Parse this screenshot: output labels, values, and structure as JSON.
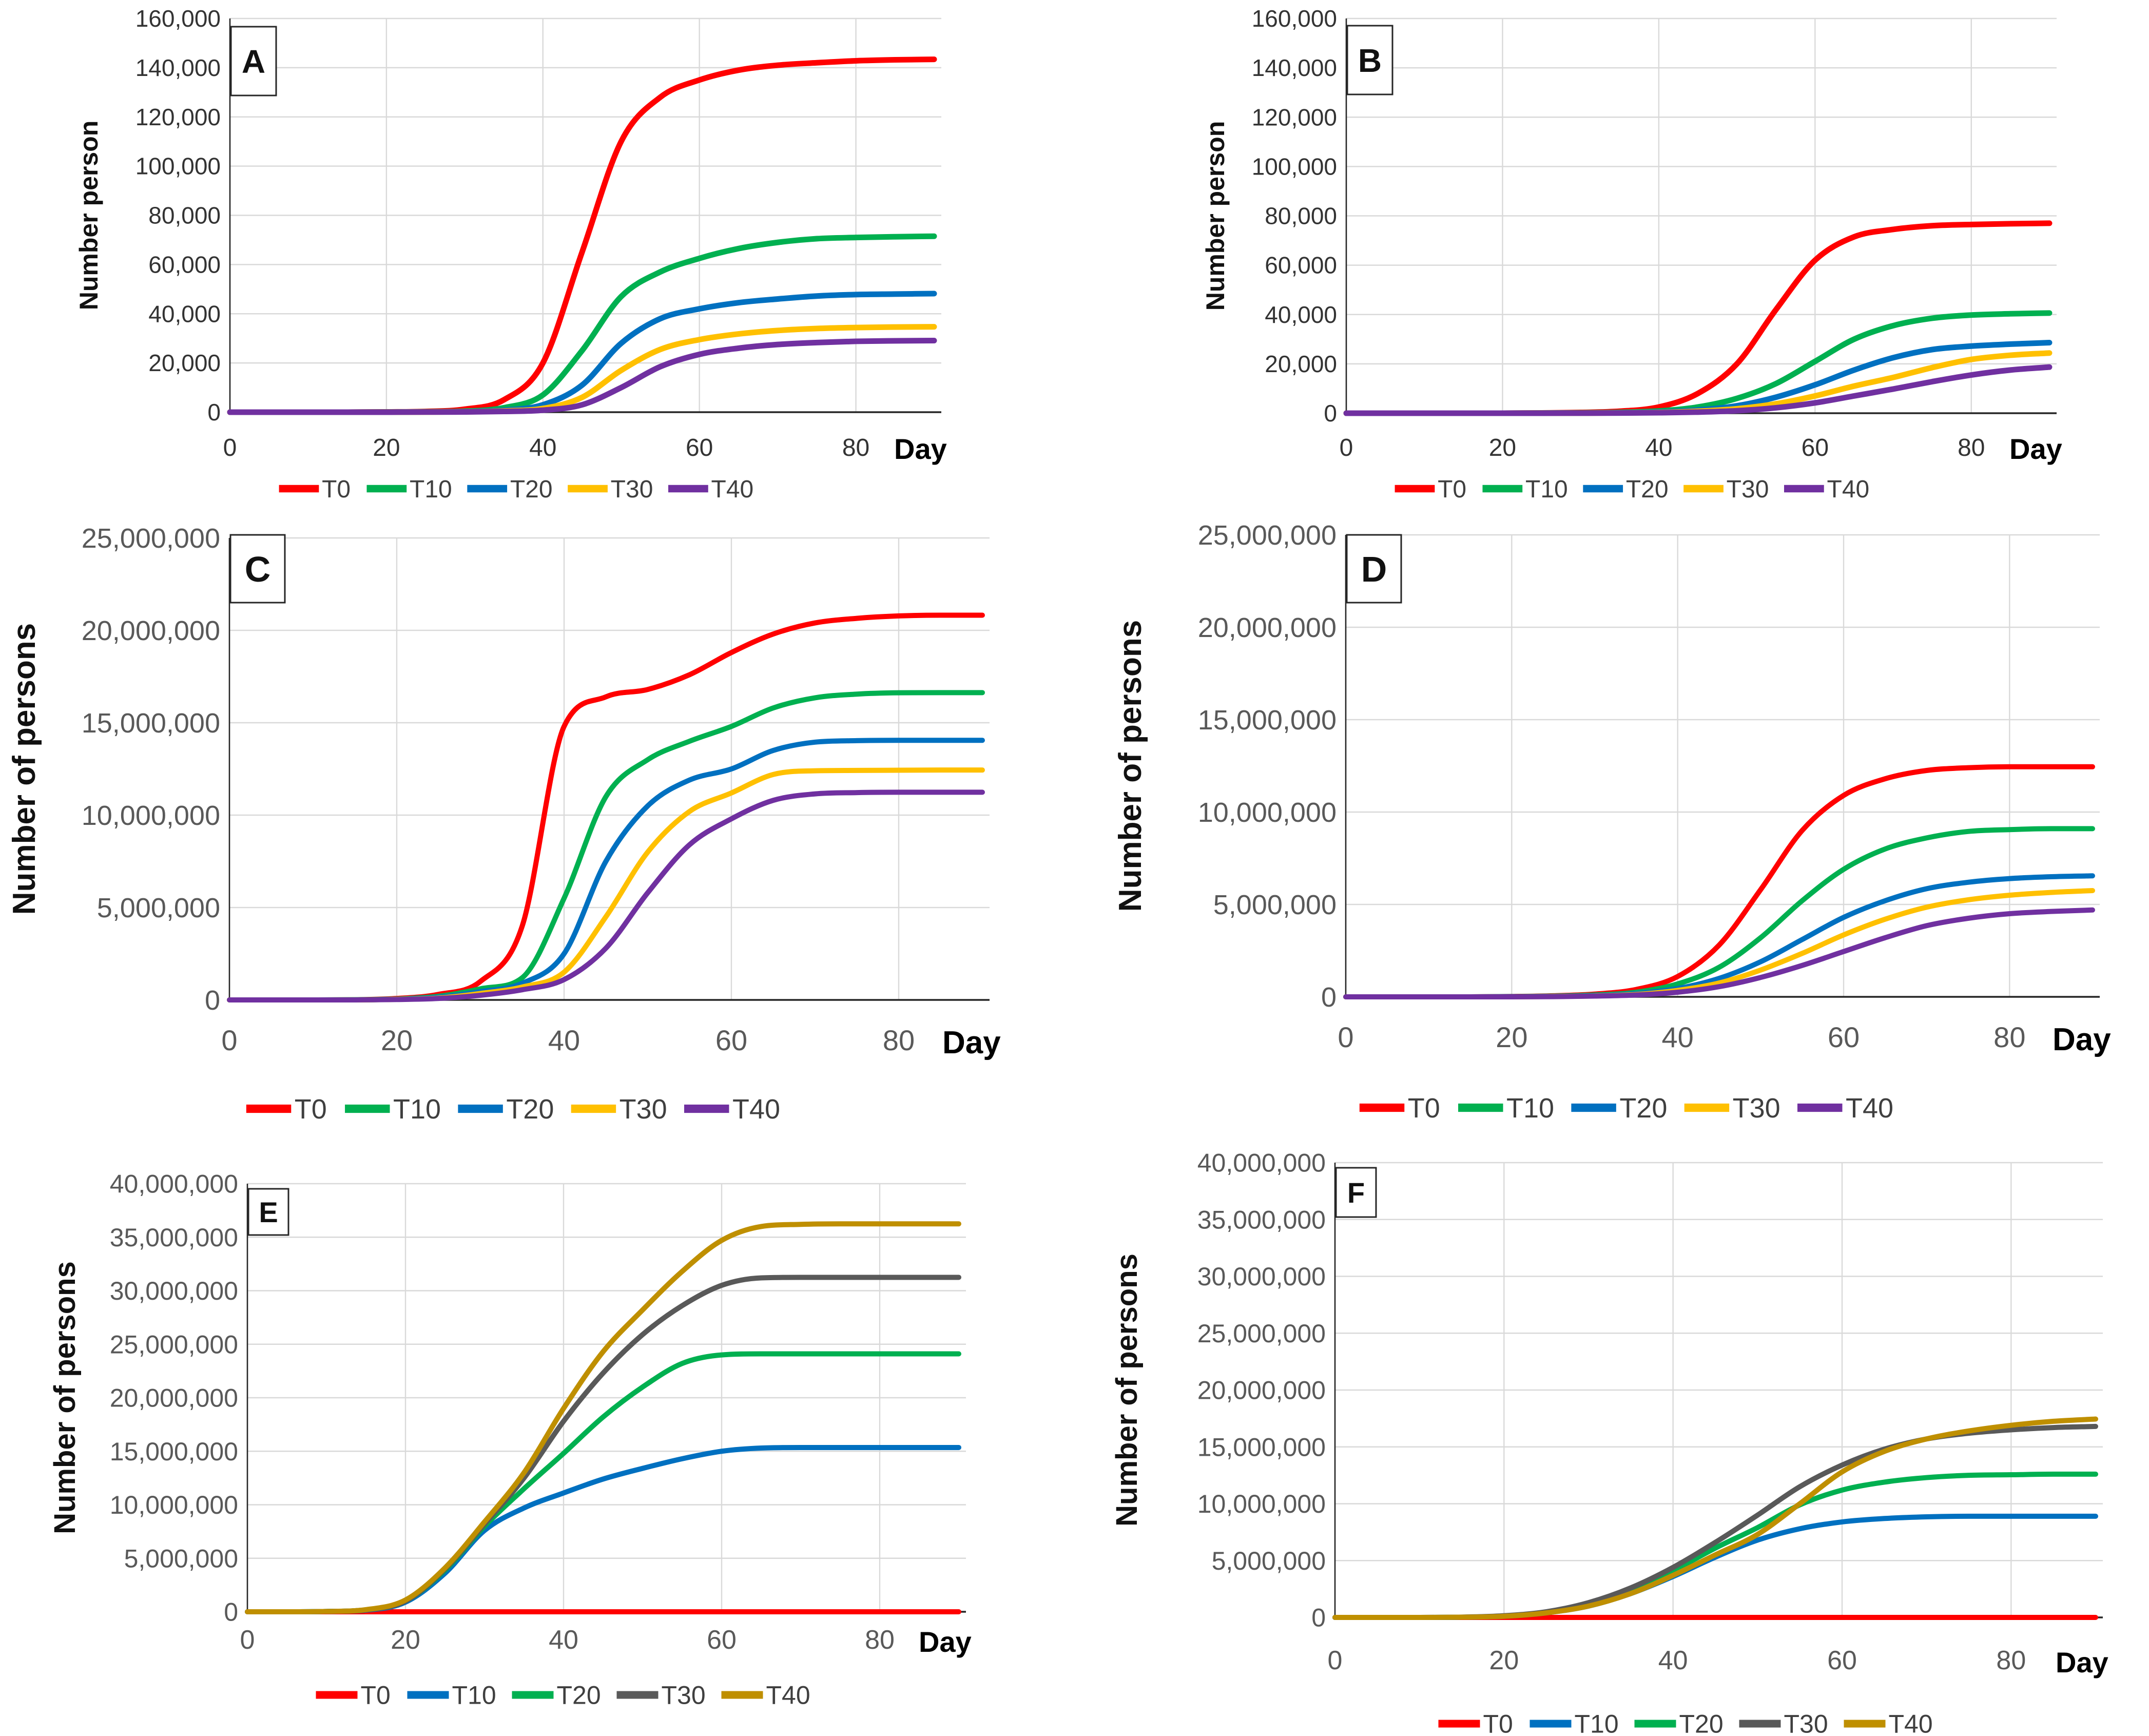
{
  "figure": {
    "description_text": "",
    "panel_letters": [
      "A",
      "B",
      "C",
      "D",
      "E",
      "F"
    ]
  },
  "colors": {
    "background": "#FFFFFF",
    "gridline": "#D9D9D9",
    "axis_line": "#262626",
    "tick_label_dark": "#333333",
    "tick_label_gray": "#595959",
    "axis_title": "#111111",
    "day_label": "#000000",
    "legend_text": "#3F3F3F",
    "panel_letter": "#111111",
    "series_red": "#FF0000",
    "series_green": "#00B050",
    "series_blue": "#0070C0",
    "series_yellow": "#FFC000",
    "series_purple": "#7030A0",
    "series_gray": "#595959",
    "series_dark_yellow": "#BF8F00"
  },
  "chart_data": [
    {
      "type": "line",
      "panel_label": "A",
      "title": "",
      "ylabel": "Number person",
      "xlabel": "Day",
      "x": [
        0,
        5,
        10,
        15,
        20,
        25,
        30,
        35,
        40,
        45,
        50,
        55,
        60,
        65,
        70,
        75,
        80,
        85,
        90
      ],
      "x_ticks": [
        0,
        20,
        40,
        60,
        80
      ],
      "xlim": [
        0,
        90
      ],
      "ylim": [
        0,
        160000
      ],
      "y_step": 20000,
      "grid": true,
      "legend_position": "bottom",
      "series": [
        {
          "name": "T0",
          "color": "#FF0000",
          "values": [
            0,
            0,
            0,
            0,
            100,
            300,
            1200,
            5000,
            20000,
            65000,
            110000,
            128000,
            135000,
            139000,
            141000,
            142000,
            142800,
            143200,
            143400
          ]
        },
        {
          "name": "T10",
          "color": "#00B050",
          "values": [
            0,
            0,
            0,
            0,
            50,
            150,
            400,
            1800,
            7000,
            25000,
            47000,
            57000,
            62500,
            66500,
            69000,
            70500,
            71000,
            71300,
            71500
          ]
        },
        {
          "name": "T20",
          "color": "#0070C0",
          "values": [
            0,
            0,
            0,
            0,
            30,
            100,
            250,
            800,
            3000,
            11000,
            28000,
            38000,
            42000,
            44500,
            46000,
            47200,
            47800,
            48000,
            48200
          ]
        },
        {
          "name": "T30",
          "color": "#FFC000",
          "values": [
            0,
            0,
            0,
            0,
            20,
            60,
            150,
            500,
            1500,
            6000,
            17000,
            25500,
            29500,
            31800,
            33200,
            34000,
            34400,
            34600,
            34700
          ]
        },
        {
          "name": "T40",
          "color": "#7030A0",
          "values": [
            0,
            0,
            0,
            0,
            10,
            40,
            100,
            300,
            800,
            3000,
            10000,
            18500,
            23500,
            26000,
            27500,
            28300,
            28800,
            29000,
            29100
          ]
        }
      ]
    },
    {
      "type": "line",
      "panel_label": "B",
      "title": "",
      "ylabel": "Number person",
      "xlabel": "Day",
      "x": [
        0,
        5,
        10,
        15,
        20,
        25,
        30,
        35,
        40,
        45,
        50,
        55,
        60,
        65,
        70,
        75,
        80,
        85,
        90
      ],
      "x_ticks": [
        0,
        20,
        40,
        60,
        80
      ],
      "xlim": [
        0,
        90
      ],
      "ylim": [
        0,
        160000
      ],
      "y_step": 20000,
      "grid": true,
      "legend_position": "bottom",
      "series": [
        {
          "name": "T0",
          "color": "#FF0000",
          "values": [
            0,
            0,
            0,
            0,
            0,
            100,
            300,
            800,
            2500,
            8000,
            20000,
            42000,
            62000,
            71500,
            74500,
            76000,
            76500,
            76800,
            77000
          ]
        },
        {
          "name": "T10",
          "color": "#00B050",
          "values": [
            0,
            0,
            0,
            0,
            0,
            50,
            150,
            350,
            900,
            2500,
            6000,
            12000,
            21000,
            30000,
            35500,
            38500,
            39800,
            40300,
            40600
          ]
        },
        {
          "name": "T20",
          "color": "#0070C0",
          "values": [
            0,
            0,
            0,
            0,
            0,
            30,
            80,
            200,
            500,
            1300,
            3000,
            6500,
            11500,
            17500,
            22500,
            25800,
            27200,
            28000,
            28600
          ]
        },
        {
          "name": "T30",
          "color": "#FFC000",
          "values": [
            0,
            0,
            0,
            0,
            0,
            20,
            50,
            120,
            300,
            800,
            1800,
            3800,
            7000,
            11000,
            14500,
            18500,
            21800,
            23500,
            24400
          ]
        },
        {
          "name": "T40",
          "color": "#7030A0",
          "values": [
            0,
            0,
            0,
            0,
            0,
            10,
            30,
            80,
            200,
            450,
            1000,
            2200,
            4200,
            7000,
            9800,
            12800,
            15500,
            17500,
            18700
          ]
        }
      ]
    },
    {
      "type": "line",
      "panel_label": "C",
      "title": "",
      "ylabel": "Number of persons",
      "xlabel": "Day",
      "x": [
        0,
        5,
        10,
        15,
        20,
        25,
        30,
        35,
        40,
        45,
        50,
        55,
        60,
        65,
        70,
        75,
        80,
        85,
        90
      ],
      "x_ticks": [
        0,
        20,
        40,
        60,
        80
      ],
      "xlim": [
        0,
        90
      ],
      "ylim": [
        0,
        25000000
      ],
      "y_step": 5000000,
      "grid": true,
      "legend_position": "bottom",
      "series": [
        {
          "name": "T0",
          "color": "#FF0000",
          "values": [
            0,
            0,
            0,
            10000,
            80000,
            300000,
            1000000,
            4000000,
            14800000,
            16400000,
            16800000,
            17600000,
            18800000,
            19800000,
            20400000,
            20650000,
            20780000,
            20820000,
            20820000
          ]
        },
        {
          "name": "T10",
          "color": "#00B050",
          "values": [
            0,
            0,
            0,
            10000,
            50000,
            200000,
            600000,
            1200000,
            5500000,
            11000000,
            13000000,
            14000000,
            14800000,
            15800000,
            16350000,
            16550000,
            16620000,
            16630000,
            16630000
          ]
        },
        {
          "name": "T20",
          "color": "#0070C0",
          "values": [
            0,
            0,
            0,
            0,
            40000,
            150000,
            450000,
            900000,
            2500000,
            7500000,
            10500000,
            11900000,
            12500000,
            13500000,
            13950000,
            14030000,
            14050000,
            14050000,
            14050000
          ]
        },
        {
          "name": "T30",
          "color": "#FFC000",
          "values": [
            0,
            0,
            0,
            0,
            30000,
            100000,
            350000,
            700000,
            1500000,
            4500000,
            8000000,
            10200000,
            11200000,
            12200000,
            12400000,
            12420000,
            12430000,
            12440000,
            12440000
          ]
        },
        {
          "name": "T40",
          "color": "#7030A0",
          "values": [
            0,
            0,
            0,
            0,
            20000,
            80000,
            250000,
            550000,
            1100000,
            2800000,
            5800000,
            8400000,
            9800000,
            10800000,
            11150000,
            11220000,
            11240000,
            11240000,
            11240000
          ]
        }
      ]
    },
    {
      "type": "line",
      "panel_label": "D",
      "title": "",
      "ylabel": "Number of persons",
      "xlabel": "Day",
      "x": [
        0,
        5,
        10,
        15,
        20,
        25,
        30,
        35,
        40,
        45,
        50,
        55,
        60,
        65,
        70,
        75,
        80,
        85,
        90
      ],
      "x_ticks": [
        0,
        20,
        40,
        60,
        80
      ],
      "xlim": [
        0,
        90
      ],
      "ylim": [
        0,
        25000000
      ],
      "y_step": 5000000,
      "grid": true,
      "legend_position": "bottom",
      "series": [
        {
          "name": "T0",
          "color": "#FF0000",
          "values": [
            0,
            0,
            0,
            0,
            20000,
            60000,
            150000,
            400000,
            1100000,
            2800000,
            5800000,
            9000000,
            10900000,
            11800000,
            12250000,
            12400000,
            12450000,
            12450000,
            12450000
          ]
        },
        {
          "name": "T10",
          "color": "#00B050",
          "values": [
            0,
            0,
            0,
            0,
            10000,
            40000,
            100000,
            250000,
            700000,
            1600000,
            3200000,
            5200000,
            6900000,
            8000000,
            8600000,
            8950000,
            9050000,
            9100000,
            9100000
          ]
        },
        {
          "name": "T20",
          "color": "#0070C0",
          "values": [
            0,
            0,
            0,
            0,
            10000,
            30000,
            70000,
            180000,
            450000,
            1000000,
            1900000,
            3100000,
            4300000,
            5200000,
            5850000,
            6200000,
            6400000,
            6500000,
            6550000
          ]
        },
        {
          "name": "T30",
          "color": "#FFC000",
          "values": [
            0,
            0,
            0,
            0,
            0,
            20000,
            50000,
            130000,
            350000,
            750000,
            1450000,
            2350000,
            3350000,
            4200000,
            4850000,
            5250000,
            5500000,
            5650000,
            5750000
          ]
        },
        {
          "name": "T40",
          "color": "#7030A0",
          "values": [
            0,
            0,
            0,
            0,
            0,
            10000,
            40000,
            100000,
            250000,
            550000,
            1050000,
            1700000,
            2450000,
            3200000,
            3850000,
            4250000,
            4500000,
            4620000,
            4700000
          ]
        }
      ]
    },
    {
      "type": "line",
      "panel_label": "E",
      "title": "",
      "ylabel": "Number of persons",
      "xlabel": "Day",
      "x": [
        0,
        5,
        10,
        15,
        20,
        25,
        30,
        35,
        40,
        45,
        50,
        55,
        60,
        65,
        70,
        75,
        80,
        85,
        90
      ],
      "x_ticks": [
        0,
        20,
        40,
        60,
        80
      ],
      "xlim": [
        0,
        90
      ],
      "ylim": [
        0,
        40000000
      ],
      "y_step": 5000000,
      "grid": true,
      "legend_position": "bottom",
      "series": [
        {
          "name": "T0",
          "color": "#FF0000",
          "values": [
            0,
            0,
            0,
            0,
            0,
            0,
            0,
            0,
            0,
            0,
            0,
            0,
            0,
            0,
            0,
            0,
            0,
            0,
            0
          ]
        },
        {
          "name": "T10",
          "color": "#0070C0",
          "values": [
            0,
            0,
            30000,
            150000,
            900000,
            3600000,
            7600000,
            9700000,
            11100000,
            12400000,
            13400000,
            14300000,
            15000000,
            15300000,
            15350000,
            15350000,
            15350000,
            15350000,
            15350000
          ]
        },
        {
          "name": "T20",
          "color": "#00B050",
          "values": [
            0,
            0,
            30000,
            180000,
            1000000,
            3900000,
            8000000,
            11500000,
            14800000,
            18200000,
            21000000,
            23200000,
            24000000,
            24100000,
            24100000,
            24100000,
            24100000,
            24100000,
            24100000
          ]
        },
        {
          "name": "T30",
          "color": "#595959",
          "values": [
            0,
            0,
            30000,
            180000,
            1000000,
            4000000,
            8200000,
            12500000,
            17800000,
            22300000,
            25900000,
            28600000,
            30500000,
            31200000,
            31250000,
            31250000,
            31250000,
            31250000,
            31250000
          ]
        },
        {
          "name": "T40",
          "color": "#BF8F00",
          "values": [
            0,
            0,
            30000,
            200000,
            1100000,
            4100000,
            8400000,
            13000000,
            19000000,
            24300000,
            28200000,
            31800000,
            34700000,
            36000000,
            36200000,
            36250000,
            36250000,
            36250000,
            36250000
          ]
        }
      ]
    },
    {
      "type": "line",
      "panel_label": "F",
      "title": "",
      "ylabel": "Number of persons",
      "xlabel": "Day",
      "x": [
        0,
        5,
        10,
        15,
        20,
        25,
        30,
        35,
        40,
        45,
        50,
        55,
        60,
        65,
        70,
        75,
        80,
        85,
        90
      ],
      "x_ticks": [
        0,
        20,
        40,
        60,
        80
      ],
      "xlim": [
        0,
        90
      ],
      "ylim": [
        0,
        40000000
      ],
      "y_step": 5000000,
      "grid": true,
      "legend_position": "bottom",
      "series": [
        {
          "name": "T0",
          "color": "#FF0000",
          "values": [
            0,
            0,
            0,
            0,
            0,
            0,
            0,
            0,
            0,
            0,
            0,
            0,
            0,
            0,
            0,
            0,
            0,
            0,
            0
          ]
        },
        {
          "name": "T10",
          "color": "#0070C0",
          "values": [
            0,
            0,
            0,
            20000,
            100000,
            400000,
            1000000,
            2100000,
            3600000,
            5300000,
            6800000,
            7800000,
            8400000,
            8700000,
            8850000,
            8900000,
            8900000,
            8900000,
            8900000
          ]
        },
        {
          "name": "T20",
          "color": "#00B050",
          "values": [
            0,
            0,
            0,
            20000,
            120000,
            450000,
            1200000,
            2400000,
            4100000,
            6100000,
            7900000,
            9900000,
            11200000,
            11900000,
            12300000,
            12500000,
            12550000,
            12600000,
            12600000
          ]
        },
        {
          "name": "T30",
          "color": "#595959",
          "values": [
            0,
            0,
            0,
            30000,
            150000,
            500000,
            1300000,
            2600000,
            4400000,
            6600000,
            9000000,
            11500000,
            13400000,
            14800000,
            15700000,
            16200000,
            16500000,
            16700000,
            16800000
          ]
        },
        {
          "name": "T40",
          "color": "#BF8F00",
          "values": [
            0,
            0,
            0,
            20000,
            100000,
            400000,
            1000000,
            2100000,
            3700000,
            5500000,
            7300000,
            10000000,
            12800000,
            14600000,
            15700000,
            16400000,
            16900000,
            17250000,
            17450000
          ]
        }
      ]
    }
  ]
}
